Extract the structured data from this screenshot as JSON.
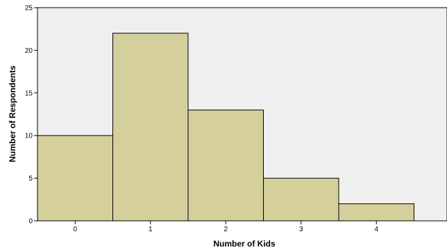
{
  "chart_data": {
    "type": "bar",
    "title": "",
    "xlabel": "Number of Kids",
    "ylabel": "Number of Respondents",
    "categories": [
      "0",
      "1",
      "2",
      "3",
      "4"
    ],
    "values": [
      10,
      22,
      13,
      5,
      2
    ],
    "ylim": [
      0,
      25
    ],
    "yticks": [
      "0",
      "5",
      "10",
      "15",
      "20",
      "25"
    ],
    "grid": false,
    "legend": "none",
    "colors": {
      "bar_fill": "#d4cf9b",
      "bar_stroke": "#000000",
      "plot_background": "#efefef",
      "axis": "#000000"
    }
  }
}
